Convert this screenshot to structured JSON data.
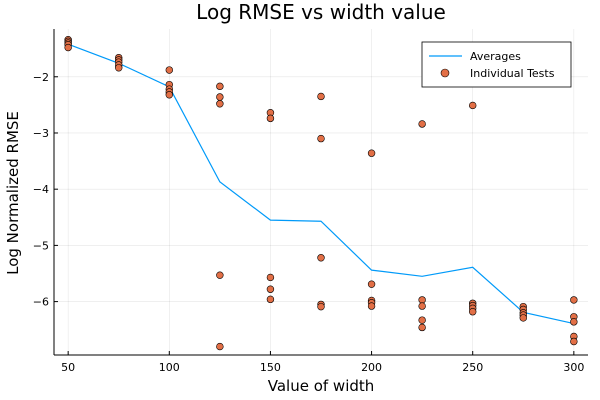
{
  "chart_data": {
    "type": "scatter",
    "title": "Log RMSE vs width value",
    "xlabel": "Value of width",
    "ylabel": "Log Normalized RMSE",
    "xlim": [
      43,
      307
    ],
    "ylim": [
      -6.95,
      -1.15
    ],
    "xticks": [
      50,
      100,
      150,
      200,
      250,
      300
    ],
    "yticks": [
      -2,
      -3,
      -4,
      -5,
      -6
    ],
    "xtick_labels": [
      "50",
      "100",
      "150",
      "200",
      "250",
      "300"
    ],
    "ytick_labels": [
      "−2",
      "−3",
      "−4",
      "−5",
      "−6"
    ],
    "grid": true,
    "legend_position": "top-right",
    "series": [
      {
        "name": "Averages",
        "kind": "line",
        "color": "#009af9",
        "x": [
          50,
          75,
          100,
          125,
          150,
          175,
          200,
          225,
          250,
          275,
          300
        ],
        "y": [
          -1.42,
          -1.76,
          -2.18,
          -3.87,
          -4.55,
          -4.57,
          -5.44,
          -5.55,
          -5.39,
          -6.19,
          -6.39
        ]
      },
      {
        "name": "Individual Tests",
        "kind": "scatter",
        "color": "#e26f46",
        "x": [
          50,
          50,
          50,
          50,
          50,
          75,
          75,
          75,
          75,
          75,
          100,
          100,
          100,
          100,
          100,
          125,
          125,
          125,
          125,
          125,
          150,
          150,
          150,
          150,
          150,
          175,
          175,
          175,
          175,
          175,
          200,
          200,
          200,
          200,
          200,
          225,
          225,
          225,
          225,
          225,
          250,
          250,
          250,
          250,
          250,
          275,
          275,
          275,
          275,
          275,
          300,
          300,
          300,
          300,
          300
        ],
        "y": [
          -1.34,
          -1.37,
          -1.4,
          -1.43,
          -1.48,
          -1.66,
          -1.7,
          -1.74,
          -1.79,
          -1.84,
          -1.88,
          -2.14,
          -2.22,
          -2.27,
          -2.32,
          -2.17,
          -2.36,
          -2.48,
          -5.53,
          -6.8,
          -2.64,
          -2.74,
          -5.57,
          -5.78,
          -5.96,
          -2.35,
          -3.1,
          -5.22,
          -6.05,
          -6.09,
          -3.36,
          -5.69,
          -5.98,
          -6.02,
          -6.08,
          -2.84,
          -5.97,
          -6.08,
          -6.33,
          -6.46,
          -2.51,
          -6.03,
          -6.07,
          -6.12,
          -6.18,
          -6.09,
          -6.14,
          -6.2,
          -6.24,
          -6.29,
          -5.97,
          -6.27,
          -6.36,
          -6.62,
          -6.71
        ]
      }
    ]
  }
}
